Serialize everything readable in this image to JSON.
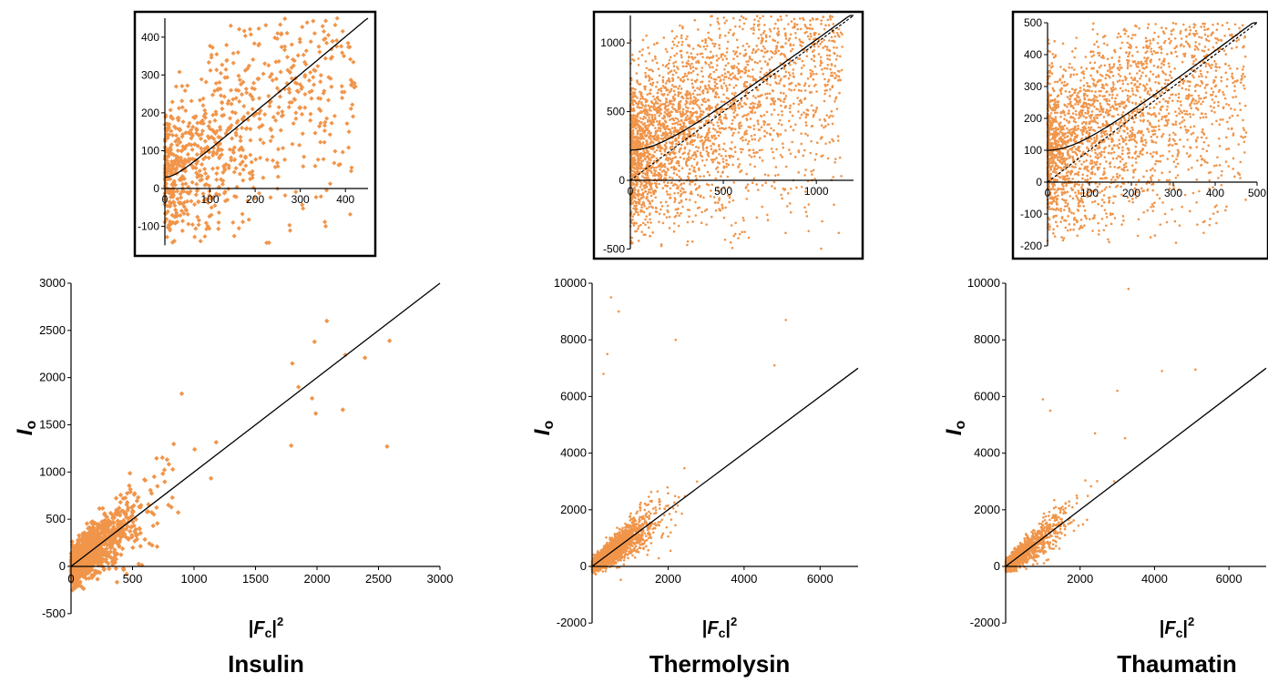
{
  "figure": {
    "colors": {
      "points": "#F0954A",
      "axis": "#000000",
      "fit": "#000000",
      "frame": "#000000"
    },
    "ylabel_main": "I",
    "ylabel_sub": "o",
    "xlabel_bars_left": "|",
    "xlabel_var": "F",
    "xlabel_sub": "c",
    "xlabel_bars_right": "|",
    "xlabel_sup": "2"
  },
  "panels": [
    {
      "title": "Insulin"
    },
    {
      "title": "Thermolysin"
    },
    {
      "title": "Thaumatin"
    }
  ],
  "chart_data": [
    {
      "id": "insulin-main",
      "type": "scatter",
      "title": "Insulin",
      "xlabel": "|Fc|²",
      "ylabel": "Io",
      "xlim": [
        0,
        3000
      ],
      "ylim": [
        -500,
        3000
      ],
      "xticks": [
        0,
        500,
        1000,
        1500,
        2000,
        2500,
        3000
      ],
      "yticks": [
        -500,
        0,
        500,
        1000,
        1500,
        2000,
        2500,
        3000
      ],
      "point_count": 1300,
      "fit_line": {
        "style": "solid",
        "slope": 1.0,
        "intercept": 0
      },
      "outliers": [
        [
          2080,
          2600
        ],
        [
          1980,
          2380
        ],
        [
          2230,
          2240
        ],
        [
          2390,
          2210
        ],
        [
          2590,
          2390
        ],
        [
          2570,
          1270
        ],
        [
          2210,
          1660
        ],
        [
          1990,
          1620
        ],
        [
          1790,
          1280
        ],
        [
          900,
          1830
        ],
        [
          1800,
          2150
        ],
        [
          1850,
          1900
        ],
        [
          1960,
          1780
        ]
      ]
    },
    {
      "id": "insulin-inset",
      "type": "scatter",
      "title": "Insulin (inset)",
      "xlim": [
        0,
        450
      ],
      "ylim": [
        -150,
        450
      ],
      "xticks": [
        0,
        100,
        200,
        300,
        400
      ],
      "yticks": [
        -100,
        0,
        100,
        200,
        300,
        400
      ],
      "point_count": 900,
      "fit_line": {
        "style": "solid",
        "curve": "sqrt(x^2 + 30^2)"
      }
    },
    {
      "id": "thermolysin-main",
      "type": "scatter",
      "title": "Thermolysin",
      "xlabel": "|Fc|²",
      "ylabel": "Io",
      "xlim": [
        0,
        7000
      ],
      "ylim": [
        -2000,
        10000
      ],
      "xticks": [
        2000,
        4000,
        6000
      ],
      "yticks": [
        -2000,
        0,
        2000,
        4000,
        6000,
        8000,
        10000
      ],
      "point_count": 2600,
      "fit_line": {
        "style": "solid",
        "slope": 1.0,
        "intercept": 0
      },
      "outliers": [
        [
          500,
          9500
        ],
        [
          700,
          9000
        ],
        [
          400,
          7500
        ],
        [
          2200,
          8000
        ],
        [
          5100,
          8700
        ],
        [
          4800,
          7100
        ],
        [
          300,
          6800
        ]
      ]
    },
    {
      "id": "thermolysin-inset",
      "type": "scatter",
      "title": "Thermolysin (inset)",
      "xlim": [
        0,
        1200
      ],
      "ylim": [
        -500,
        1200
      ],
      "xticks": [
        0,
        500,
        1000
      ],
      "yticks": [
        -500,
        0,
        500,
        1000
      ],
      "point_count": 3200,
      "fit_line": {
        "style": "solid",
        "curve": "sqrt(x^2 + 220^2)"
      },
      "identity_line": {
        "style": "dashed",
        "slope": 1.0,
        "intercept": 0
      }
    },
    {
      "id": "thaumatin-main",
      "type": "scatter",
      "title": "Thaumatin",
      "xlabel": "|Fc|²",
      "ylabel": "Io",
      "xlim": [
        0,
        7000
      ],
      "ylim": [
        -2000,
        10000
      ],
      "xticks": [
        2000,
        4000,
        6000
      ],
      "yticks": [
        -2000,
        0,
        2000,
        4000,
        6000,
        8000,
        10000
      ],
      "point_count": 1500,
      "fit_line": {
        "style": "solid",
        "slope": 1.0,
        "intercept": 0
      },
      "outliers": [
        [
          3300,
          9800
        ],
        [
          4200,
          6900
        ],
        [
          5100,
          6950
        ],
        [
          1000,
          5900
        ],
        [
          1200,
          5500
        ],
        [
          2400,
          4700
        ],
        [
          3000,
          6200
        ]
      ]
    },
    {
      "id": "thaumatin-inset",
      "type": "scatter",
      "title": "Thaumatin (inset)",
      "xlim": [
        0,
        500
      ],
      "ylim": [
        -200,
        500
      ],
      "xticks": [
        0,
        100,
        200,
        300,
        400,
        500
      ],
      "yticks": [
        -200,
        -100,
        0,
        100,
        200,
        300,
        400,
        500
      ],
      "point_count": 2600,
      "fit_line": {
        "style": "solid",
        "curve": "sqrt(x^2 + 100^2)"
      },
      "identity_line": {
        "style": "dashed",
        "slope": 1.0,
        "intercept": 0
      }
    }
  ]
}
